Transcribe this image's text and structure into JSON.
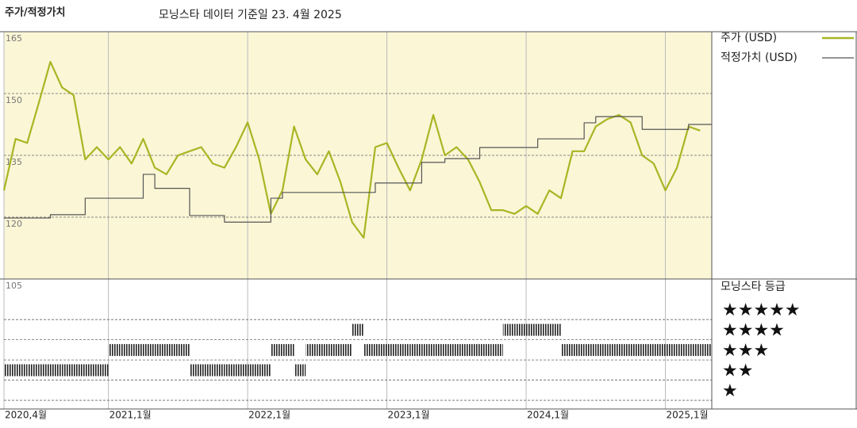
{
  "chart_data": [
    {
      "type": "line",
      "title": "주가/적정가치",
      "subtitle": "모닝스타 데이터 기준일 23. 4월 2025",
      "x": [
        "2020-04",
        "2020-05",
        "2020-06",
        "2020-07",
        "2020-08",
        "2020-09",
        "2020-10",
        "2020-11",
        "2020-12",
        "2021-01",
        "2021-02",
        "2021-03",
        "2021-04",
        "2021-05",
        "2021-06",
        "2021-07",
        "2021-08",
        "2021-09",
        "2021-10",
        "2021-11",
        "2021-12",
        "2022-01",
        "2022-02",
        "2022-03",
        "2022-04",
        "2022-05",
        "2022-06",
        "2022-07",
        "2022-08",
        "2022-09",
        "2022-10",
        "2022-11",
        "2022-12",
        "2023-01",
        "2023-02",
        "2023-03",
        "2023-04",
        "2023-05",
        "2023-06",
        "2023-07",
        "2023-08",
        "2023-09",
        "2023-10",
        "2023-11",
        "2023-12",
        "2024-01",
        "2024-02",
        "2024-03",
        "2024-04",
        "2024-05",
        "2024-06",
        "2024-07",
        "2024-08",
        "2024-09",
        "2024-10",
        "2024-11",
        "2024-12",
        "2025-01",
        "2025-02",
        "2025-03",
        "2025-04"
      ],
      "series": [
        {
          "name": "주가 (USD)",
          "color": "#a9b524",
          "values": [
            126.5,
            139,
            138,
            147.7,
            157.7,
            151.5,
            149.6,
            134,
            137,
            134,
            137,
            133,
            139,
            132,
            130.4,
            135,
            136,
            137,
            133,
            132,
            137,
            143,
            134,
            120.8,
            126.5,
            142,
            134,
            130.4,
            136,
            128.5,
            118.8,
            115,
            137,
            138,
            132,
            126.5,
            134,
            144.8,
            135,
            137,
            134,
            128.5,
            121.7,
            121.7,
            120.8,
            122.7,
            120.8,
            126.5,
            124.6,
            136,
            136,
            142,
            143.8,
            144.8,
            143,
            135,
            133,
            126.5,
            132,
            142,
            141
          ]
        },
        {
          "name": "적정가치 (USD)",
          "color": "#555555",
          "step": true,
          "values": [
            119.8,
            119.8,
            119.8,
            119.8,
            120.6,
            120.6,
            120.6,
            124.6,
            124.6,
            124.6,
            124.6,
            124.6,
            130.4,
            127,
            127,
            127,
            120.4,
            120.4,
            120.4,
            118.8,
            118.8,
            118.8,
            118.8,
            124.6,
            126,
            126,
            126,
            126,
            126,
            126,
            126,
            126,
            128.3,
            128.3,
            128.3,
            128.3,
            133.3,
            133.3,
            134.2,
            134.2,
            134.2,
            136.9,
            136.9,
            136.9,
            136.9,
            136.9,
            139,
            139,
            139,
            139,
            142.9,
            144.4,
            144.4,
            144.4,
            144.4,
            141.3,
            141.3,
            141.3,
            141.3,
            142.5,
            142.5
          ]
        }
      ],
      "xlim": [
        "2020-04",
        "2025-05"
      ],
      "xticks": [
        {
          "value": "2020-04",
          "label": "2020,4월"
        },
        {
          "value": "2021-01",
          "label": "2021,1월"
        },
        {
          "value": "2022-01",
          "label": "2022,1월"
        },
        {
          "value": "2023-01",
          "label": "2023,1월"
        },
        {
          "value": "2024-01",
          "label": "2024,1월"
        },
        {
          "value": "2025-01",
          "label": "2025,1월"
        }
      ],
      "ylim": [
        105,
        165
      ],
      "yticks": [
        165,
        150,
        135,
        120,
        105
      ],
      "grid": true,
      "background": "#fbf6d6"
    },
    {
      "type": "rating",
      "title": "모닝스타 등급",
      "x": [
        "2020-04",
        "2020-05",
        "2020-06",
        "2020-07",
        "2020-08",
        "2020-09",
        "2020-10",
        "2020-11",
        "2020-12",
        "2021-01",
        "2021-02",
        "2021-03",
        "2021-04",
        "2021-05",
        "2021-06",
        "2021-07",
        "2021-08",
        "2021-09",
        "2021-10",
        "2021-11",
        "2021-12",
        "2022-01",
        "2022-02",
        "2022-03",
        "2022-04",
        "2022-05",
        "2022-06",
        "2022-07",
        "2022-08",
        "2022-09",
        "2022-10",
        "2022-11",
        "2022-12",
        "2023-01",
        "2023-02",
        "2023-03",
        "2023-04",
        "2023-05",
        "2023-06",
        "2023-07",
        "2023-08",
        "2023-09",
        "2023-10",
        "2023-11",
        "2023-12",
        "2024-01",
        "2024-02",
        "2024-03",
        "2024-04",
        "2024-05",
        "2024-06",
        "2024-07",
        "2024-08",
        "2024-09",
        "2024-10",
        "2024-11",
        "2024-12",
        "2025-01",
        "2025-02",
        "2025-03",
        "2025-04"
      ],
      "values": [
        2,
        2,
        2,
        2,
        2,
        2,
        2,
        2,
        2,
        3,
        3,
        3,
        3,
        3,
        3,
        3,
        2,
        2,
        2,
        2,
        2,
        2,
        2,
        3,
        3,
        2,
        3,
        3,
        3,
        3,
        4,
        3,
        3,
        3,
        3,
        3,
        3,
        3,
        3,
        3,
        3,
        3,
        3,
        4,
        4,
        4,
        4,
        4,
        3,
        3,
        3,
        3,
        3,
        3,
        3,
        3,
        3,
        3,
        3,
        3,
        3
      ],
      "color": "#222222",
      "xlim": [
        "2020-04",
        "2025-05"
      ],
      "ylim": [
        0,
        6.5
      ],
      "yticks": [
        {
          "value": 5,
          "label": "★★★★★"
        },
        {
          "value": 4,
          "label": "★★★★"
        },
        {
          "value": 3,
          "label": "★★★"
        },
        {
          "value": 2,
          "label": "★★"
        },
        {
          "value": 1,
          "label": "★"
        }
      ],
      "grid": true
    }
  ]
}
